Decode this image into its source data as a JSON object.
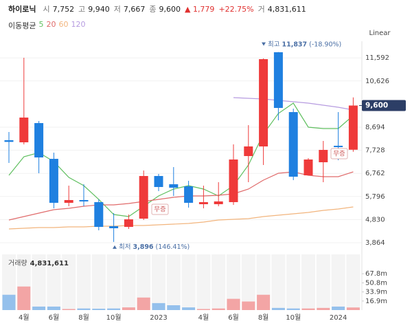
{
  "header": {
    "name": "하이로닉",
    "items": [
      {
        "label": "시",
        "value": "7,752"
      },
      {
        "label": "고",
        "value": "9,940"
      },
      {
        "label": "저",
        "value": "7,667"
      },
      {
        "label": "종",
        "value": "9,600"
      }
    ],
    "change": "▲ 1,779",
    "change_pct": "+22.75%",
    "volume_label": "거",
    "volume": "4,831,611"
  },
  "legend_title": "이동평균",
  "scale_button": "Linear",
  "chart_data": [
    {
      "type": "candlestick",
      "categories": [
        null,
        "4월",
        null,
        "6월",
        null,
        "8월",
        null,
        "10월",
        null,
        null,
        "2023",
        null,
        null,
        "4월",
        null,
        "6월",
        null,
        "8월",
        null,
        "10월",
        null,
        null,
        "2024",
        null
      ],
      "open": [
        8150,
        8062,
        8866,
        7371,
        5532,
        5647,
        5560,
        4554,
        4525,
        4870,
        6653,
        6308,
        6221,
        5474,
        5474,
        5560,
        7487,
        7889,
        11828,
        9326,
        6681,
        7228,
        7918,
        7752
      ],
      "high": [
        8493,
        11598,
        8953,
        7630,
        6250,
        6308,
        5675,
        5100,
        5043,
        6883,
        6739,
        7026,
        6452,
        6250,
        6394,
        7975,
        8780,
        11569,
        11837,
        9470,
        7400,
        8119,
        9326,
        9940
      ],
      "low": [
        7199,
        7975,
        6768,
        5301,
        5388,
        5388,
        4381,
        3896,
        4439,
        4813,
        6020,
        5819,
        5330,
        5301,
        5388,
        5445,
        6394,
        7112,
        8981,
        6480,
        6681,
        6394,
        7314,
        7667
      ],
      "close": [
        8080,
        9097,
        7429,
        5532,
        5647,
        5589,
        4525,
        4468,
        4841,
        6653,
        6193,
        6164,
        5532,
        5560,
        5589,
        7343,
        7889,
        11540,
        9499,
        6624,
        7343,
        7745,
        7860,
        9600
      ],
      "up_color": "#ef3a3a",
      "down_color": "#1f80e0",
      "series": [
        {
          "name": "5",
          "color": "#5fbf5f",
          "values": [
            6682,
            7458,
            7630,
            7256,
            6595,
            6250,
            5675,
            5043,
            4956,
            5388,
            5819,
            6106,
            6250,
            6106,
            5819,
            6250,
            7113,
            8406,
            9269,
            9700,
            8694,
            8637,
            8637,
            9183
          ]
        },
        {
          "name": "20",
          "color": "#e06a6a",
          "values": [
            4813,
            4956,
            5100,
            5244,
            5302,
            5388,
            5445,
            5445,
            5503,
            5589,
            5675,
            5762,
            5819,
            5819,
            5848,
            5905,
            6106,
            6480,
            6768,
            6825,
            6682,
            6624,
            6624,
            6825
          ]
        },
        {
          "name": "60",
          "color": "#f2b47c",
          "values": [
            4439,
            4468,
            4497,
            4497,
            4525,
            4525,
            4554,
            4554,
            4583,
            4583,
            4612,
            4640,
            4669,
            4727,
            4813,
            4842,
            4870,
            4957,
            5014,
            5072,
            5129,
            5215,
            5273,
            5359
          ]
        },
        {
          "name": "120",
          "color": "#b69be0",
          "values": [
            null,
            null,
            null,
            null,
            null,
            null,
            null,
            null,
            null,
            null,
            null,
            null,
            null,
            null,
            null,
            9930,
            9901,
            9873,
            9815,
            9758,
            9700,
            9614,
            9528,
            9413
          ]
        }
      ],
      "ylim": [
        3433,
        12288
      ],
      "yticks": [
        {
          "value": 3864,
          "label": "3,864"
        },
        {
          "value": 4830,
          "label": "4,830"
        },
        {
          "value": 5796,
          "label": "5,796"
        },
        {
          "value": 6762,
          "label": "6,762"
        },
        {
          "value": 7728,
          "label": "7,728"
        },
        {
          "value": 8694,
          "label": "8,694"
        },
        {
          "value": 10626,
          "label": "10,626"
        },
        {
          "value": 11592,
          "label": "11,592"
        }
      ],
      "grid": true,
      "current_price": {
        "value": 9600,
        "label": "9,600"
      },
      "high_marker": {
        "label": "최고",
        "value": 11837,
        "value_label": "11,837",
        "pct": "(-18.90%)"
      },
      "low_marker": {
        "label": "최저",
        "value": 3896,
        "value_label": "3,896",
        "pct": "(146.41%)"
      },
      "notes": [
        "무증",
        "무증"
      ]
    },
    {
      "type": "bar",
      "title": "거래량",
      "current_label": "4,831,611",
      "values": [
        28.6,
        44,
        6.5,
        6.5,
        2,
        3,
        2.5,
        3,
        5,
        23.4,
        13,
        9,
        5,
        2,
        3,
        21,
        16,
        28.6,
        4,
        3,
        3,
        4,
        6.5,
        4.831611
      ],
      "up_color": "#f3a5a5",
      "down_color": "#94c0ec",
      "ylim": [
        0,
        104
      ],
      "yticks": [
        {
          "value": 16.9,
          "label": "16.9m"
        },
        {
          "value": 33.9,
          "label": "33.9m"
        },
        {
          "value": 50.8,
          "label": "50.8m"
        },
        {
          "value": 67.8,
          "label": "67.8m"
        }
      ]
    }
  ]
}
